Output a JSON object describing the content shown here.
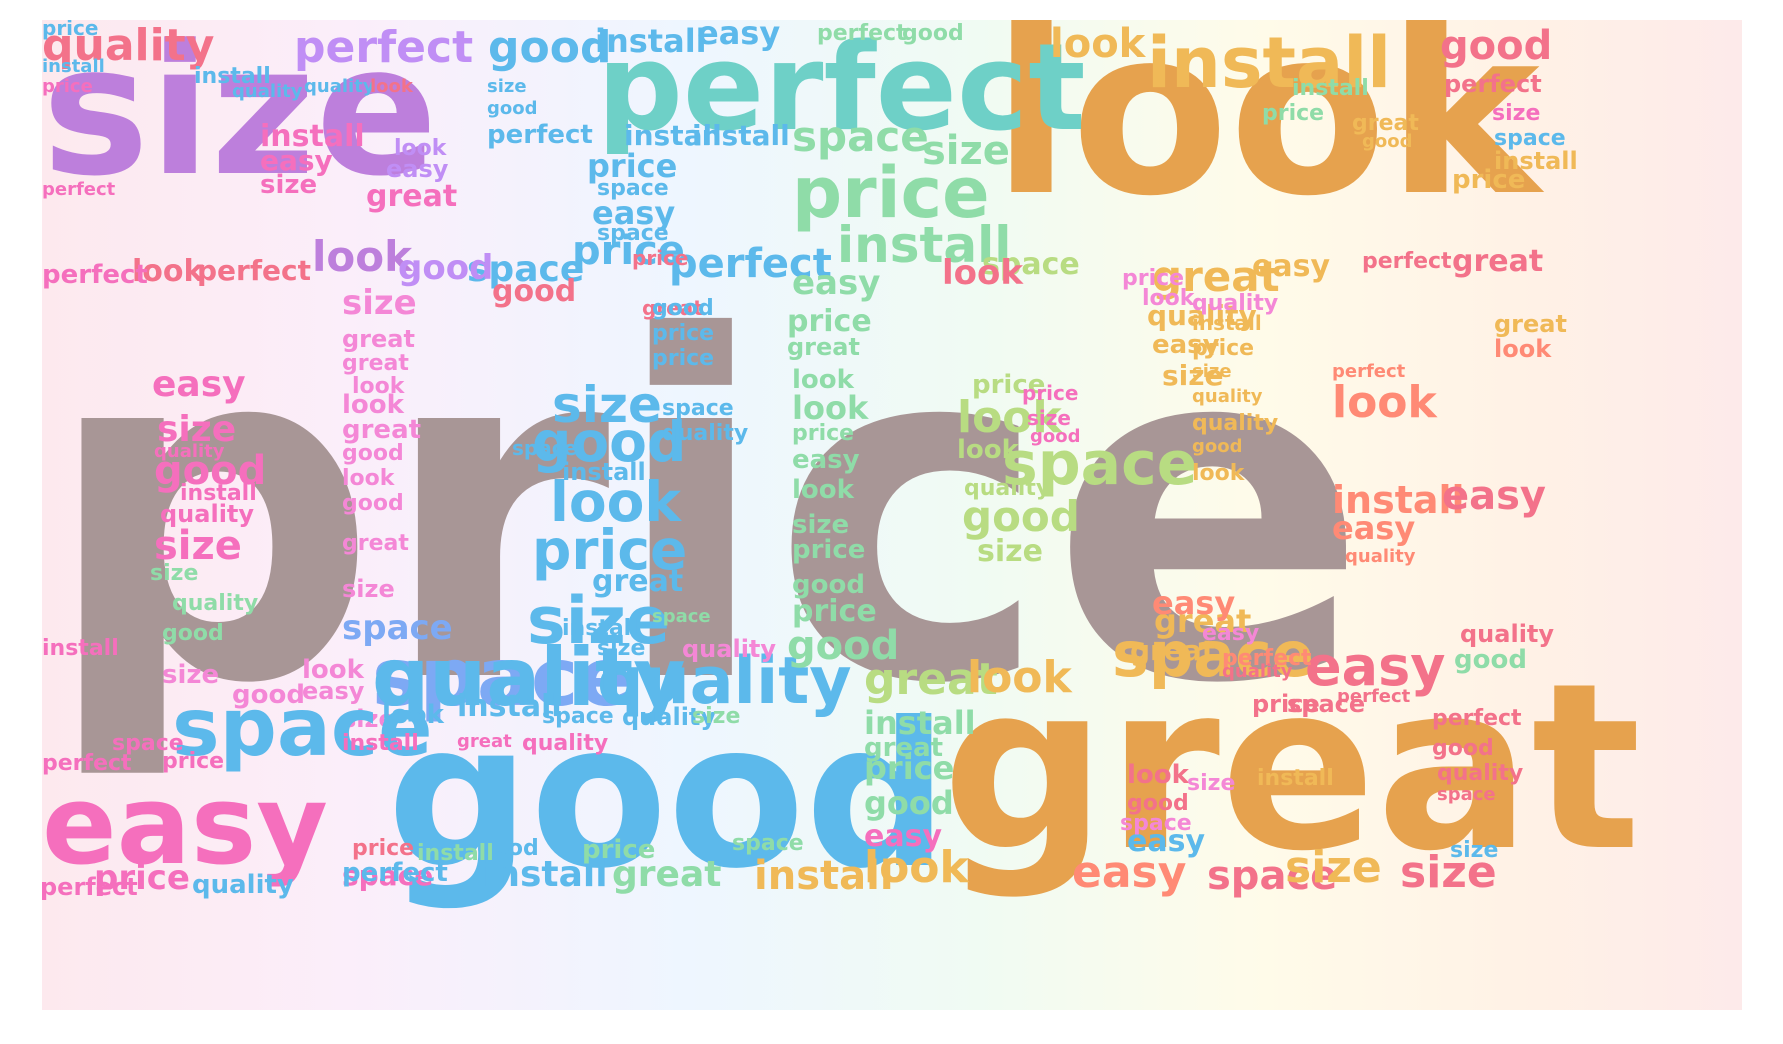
{
  "title": "",
  "palette": {
    "pink": "#f56fbd",
    "lightpink": "#f487d6",
    "salmon": "#f3728a",
    "coral": "#ff8a75",
    "purple": "#bd7fdc",
    "lavender": "#c08ef5",
    "skyblue": "#5cb9eb",
    "blue": "#7da9f4",
    "teal": "#6ed0c7",
    "mint": "#8fdca8",
    "lime": "#b8dc82",
    "gold": "#e6a24e",
    "amber": "#f0b957",
    "taupe": "#a89696"
  },
  "words": [
    {
      "text": "price",
      "color": "taupe"
    },
    {
      "text": "size",
      "color": "purple"
    },
    {
      "text": "look",
      "color": "gold"
    },
    {
      "text": "good",
      "color": "skyblue"
    },
    {
      "text": "great",
      "color": "gold"
    },
    {
      "text": "perfect",
      "color": "teal"
    },
    {
      "text": "easy",
      "color": "pink"
    },
    {
      "text": "install",
      "color": "amber"
    },
    {
      "text": "space",
      "color": "blue"
    },
    {
      "text": "quality",
      "color": "skyblue"
    },
    {
      "text": "price",
      "color": "mint"
    },
    {
      "text": "quality",
      "color": "salmon"
    },
    {
      "text": "perfect",
      "color": "lavender"
    },
    {
      "text": "good",
      "color": "skyblue"
    },
    {
      "text": "install",
      "color": "skyblue"
    },
    {
      "text": "easy",
      "color": "skyblue"
    },
    {
      "text": "perfect",
      "color": "mint"
    },
    {
      "text": "good",
      "color": "mint"
    },
    {
      "text": "look",
      "color": "amber"
    },
    {
      "text": "good",
      "color": "salmon"
    },
    {
      "text": "perfect",
      "color": "salmon"
    },
    {
      "text": "space",
      "color": "mint"
    },
    {
      "text": "size",
      "color": "mint"
    },
    {
      "text": "install",
      "color": "skyblue"
    },
    {
      "text": "install",
      "color": "skyblue"
    },
    {
      "text": "install",
      "color": "pink"
    },
    {
      "text": "easy",
      "color": "pink"
    },
    {
      "text": "size",
      "color": "pink"
    },
    {
      "text": "great",
      "color": "pink"
    },
    {
      "text": "look",
      "color": "lavender"
    },
    {
      "text": "easy",
      "color": "lavender"
    },
    {
      "text": "price",
      "color": "skyblue"
    },
    {
      "text": "space",
      "color": "skyblue"
    },
    {
      "text": "easy",
      "color": "skyblue"
    },
    {
      "text": "space",
      "color": "skyblue"
    },
    {
      "text": "price",
      "color": "skyblue"
    },
    {
      "text": "perfect",
      "color": "skyblue"
    },
    {
      "text": "look",
      "color": "purple"
    },
    {
      "text": "space",
      "color": "skyblue"
    },
    {
      "text": "good",
      "color": "lavender"
    },
    {
      "text": "perfect",
      "color": "salmon"
    },
    {
      "text": "look",
      "color": "salmon"
    },
    {
      "text": "perfect",
      "color": "pink"
    },
    {
      "text": "install",
      "color": "mint"
    },
    {
      "text": "space",
      "color": "lime"
    },
    {
      "text": "great",
      "color": "amber"
    },
    {
      "text": "easy",
      "color": "amber"
    },
    {
      "text": "perfect",
      "color": "salmon"
    },
    {
      "text": "great",
      "color": "salmon"
    },
    {
      "text": "easy",
      "color": "mint"
    },
    {
      "text": "price",
      "color": "mint"
    },
    {
      "text": "great",
      "color": "mint"
    },
    {
      "text": "quality",
      "color": "amber"
    },
    {
      "text": "easy",
      "color": "amber"
    },
    {
      "text": "size",
      "color": "amber"
    },
    {
      "text": "look",
      "color": "mint"
    },
    {
      "text": "look",
      "color": "mint"
    },
    {
      "text": "price",
      "color": "mint"
    },
    {
      "text": "easy",
      "color": "mint"
    },
    {
      "text": "look",
      "color": "mint"
    },
    {
      "text": "size",
      "color": "mint"
    },
    {
      "text": "price",
      "color": "mint"
    },
    {
      "text": "good",
      "color": "mint"
    },
    {
      "text": "price",
      "color": "mint"
    },
    {
      "text": "good",
      "color": "mint"
    },
    {
      "text": "size",
      "color": "skyblue"
    },
    {
      "text": "good",
      "color": "skyblue"
    },
    {
      "text": "install",
      "color": "skyblue"
    },
    {
      "text": "look",
      "color": "skyblue"
    },
    {
      "text": "price",
      "color": "skyblue"
    },
    {
      "text": "great",
      "color": "skyblue"
    },
    {
      "text": "size",
      "color": "skyblue"
    },
    {
      "text": "price",
      "color": "lime"
    },
    {
      "text": "look",
      "color": "lime"
    },
    {
      "text": "space",
      "color": "lime"
    },
    {
      "text": "look",
      "color": "lime"
    },
    {
      "text": "quality",
      "color": "lime"
    },
    {
      "text": "good",
      "color": "lime"
    },
    {
      "text": "size",
      "color": "lime"
    },
    {
      "text": "look",
      "color": "coral"
    },
    {
      "text": "perfect",
      "color": "coral"
    },
    {
      "text": "install",
      "color": "coral"
    },
    {
      "text": "easy",
      "color": "coral"
    },
    {
      "text": "easy",
      "color": "salmon"
    },
    {
      "text": "quality",
      "color": "coral"
    },
    {
      "text": "easy",
      "color": "pink"
    },
    {
      "text": "size",
      "color": "pink"
    },
    {
      "text": "quality",
      "color": "pink"
    },
    {
      "text": "good",
      "color": "pink"
    },
    {
      "text": "install",
      "color": "pink"
    },
    {
      "text": "quality",
      "color": "pink"
    },
    {
      "text": "size",
      "color": "pink"
    },
    {
      "text": "size",
      "color": "lightpink"
    },
    {
      "text": "great",
      "color": "lightpink"
    },
    {
      "text": "great",
      "color": "lightpink"
    },
    {
      "text": "look",
      "color": "lightpink"
    },
    {
      "text": "look",
      "color": "lightpink"
    },
    {
      "text": "great",
      "color": "lightpink"
    },
    {
      "text": "good",
      "color": "lightpink"
    },
    {
      "text": "look",
      "color": "lightpink"
    },
    {
      "text": "good",
      "color": "lightpink"
    },
    {
      "text": "great",
      "color": "lightpink"
    },
    {
      "text": "size",
      "color": "lightpink"
    },
    {
      "text": "space",
      "color": "blue"
    },
    {
      "text": "quality",
      "color": "skyblue"
    },
    {
      "text": "size",
      "color": "skyblue"
    },
    {
      "text": "quality",
      "color": "lightpink"
    },
    {
      "text": "size",
      "color": "lightpink"
    },
    {
      "text": "look",
      "color": "lightpink"
    },
    {
      "text": "good",
      "color": "lightpink"
    },
    {
      "text": "easy",
      "color": "lightpink"
    },
    {
      "text": "size",
      "color": "lightpink"
    },
    {
      "text": "space",
      "color": "skyblue"
    },
    {
      "text": "install",
      "color": "skyblue"
    },
    {
      "text": "space",
      "color": "skyblue"
    },
    {
      "text": "quality",
      "color": "skyblue"
    },
    {
      "text": "size",
      "color": "mint"
    },
    {
      "text": "great",
      "color": "lime"
    },
    {
      "text": "look",
      "color": "amber"
    },
    {
      "text": "space",
      "color": "amber"
    },
    {
      "text": "great",
      "color": "amber"
    },
    {
      "text": "great",
      "color": "amber"
    },
    {
      "text": "easy",
      "color": "coral"
    },
    {
      "text": "easy",
      "color": "salmon"
    },
    {
      "text": "quality",
      "color": "salmon"
    },
    {
      "text": "good",
      "color": "mint"
    },
    {
      "text": "install",
      "color": "mint"
    },
    {
      "text": "great",
      "color": "mint"
    },
    {
      "text": "price",
      "color": "mint"
    },
    {
      "text": "good",
      "color": "mint"
    },
    {
      "text": "easy",
      "color": "pink"
    },
    {
      "text": "space",
      "color": "pink"
    },
    {
      "text": "price",
      "color": "pink"
    },
    {
      "text": "install",
      "color": "pink"
    },
    {
      "text": "price",
      "color": "salmon"
    },
    {
      "text": "space",
      "color": "pink"
    },
    {
      "text": "perfect",
      "color": "pink"
    },
    {
      "text": "price",
      "color": "pink"
    },
    {
      "text": "quality",
      "color": "skyblue"
    },
    {
      "text": "perfect",
      "color": "skyblue"
    },
    {
      "text": "install",
      "color": "skyblue"
    },
    {
      "text": "great",
      "color": "mint"
    },
    {
      "text": "price",
      "color": "mint"
    },
    {
      "text": "install",
      "color": "amber"
    },
    {
      "text": "look",
      "color": "amber"
    },
    {
      "text": "easy",
      "color": "coral"
    },
    {
      "text": "space",
      "color": "salmon"
    },
    {
      "text": "size",
      "color": "amber"
    },
    {
      "text": "size",
      "color": "salmon"
    },
    {
      "text": "easy",
      "color": "skyblue"
    },
    {
      "text": "size",
      "color": "skyblue"
    },
    {
      "text": "good",
      "color": "skyblue"
    },
    {
      "text": "install",
      "color": "mint"
    },
    {
      "text": "space",
      "color": "mint"
    },
    {
      "text": "look",
      "color": "salmon"
    },
    {
      "text": "good",
      "color": "salmon"
    },
    {
      "text": "good",
      "color": "salmon"
    },
    {
      "text": "quality",
      "color": "salmon"
    },
    {
      "text": "space",
      "color": "salmon"
    },
    {
      "text": "install",
      "color": "amber"
    },
    {
      "text": "size",
      "color": "lightpink"
    },
    {
      "text": "space",
      "color": "lightpink"
    },
    {
      "text": "easy",
      "color": "lightpink"
    },
    {
      "text": "perfect",
      "color": "coral"
    },
    {
      "text": "quality",
      "color": "salmon"
    },
    {
      "text": "space",
      "color": "salmon"
    },
    {
      "text": "perfect",
      "color": "salmon"
    },
    {
      "text": "perfect",
      "color": "salmon"
    },
    {
      "text": "price",
      "color": "salmon"
    },
    {
      "text": "perfect",
      "color": "pink"
    },
    {
      "text": "install",
      "color": "pink"
    },
    {
      "text": "perfect",
      "color": "pink"
    },
    {
      "text": "price",
      "color": "pink"
    },
    {
      "text": "install",
      "color": "skyblue"
    },
    {
      "text": "install",
      "color": "skyblue"
    },
    {
      "text": "quality",
      "color": "skyblue"
    },
    {
      "text": "quality",
      "color": "skyblue"
    },
    {
      "text": "look",
      "color": "salmon"
    },
    {
      "text": "price",
      "color": "salmon"
    },
    {
      "text": "great",
      "color": "salmon"
    },
    {
      "text": "great",
      "color": "pink"
    },
    {
      "text": "quality",
      "color": "pink"
    },
    {
      "text": "size",
      "color": "pink"
    },
    {
      "text": "space",
      "color": "skyblue"
    },
    {
      "text": "install",
      "color": "amber"
    },
    {
      "text": "great",
      "color": "amber"
    },
    {
      "text": "good",
      "color": "amber"
    },
    {
      "text": "install",
      "color": "mint"
    },
    {
      "text": "price",
      "color": "mint"
    },
    {
      "text": "good",
      "color": "mint"
    },
    {
      "text": "size",
      "color": "mint"
    },
    {
      "text": "quality",
      "color": "mint"
    },
    {
      "text": "price",
      "color": "pink"
    },
    {
      "text": "size",
      "color": "pink"
    },
    {
      "text": "good",
      "color": "pink"
    },
    {
      "text": "price",
      "color": "lightpink"
    },
    {
      "text": "look",
      "color": "lightpink"
    },
    {
      "text": "quality",
      "color": "lightpink"
    },
    {
      "text": "install",
      "color": "amber"
    },
    {
      "text": "price",
      "color": "amber"
    },
    {
      "text": "size",
      "color": "amber"
    },
    {
      "text": "quality",
      "color": "amber"
    },
    {
      "text": "quality",
      "color": "amber"
    },
    {
      "text": "good",
      "color": "amber"
    },
    {
      "text": "look",
      "color": "amber"
    },
    {
      "text": "price",
      "color": "amber"
    },
    {
      "text": "great",
      "color": "amber"
    },
    {
      "text": "look",
      "color": "coral"
    },
    {
      "text": "look",
      "color": "salmon"
    },
    {
      "text": "good",
      "color": "salmon"
    },
    {
      "text": "space",
      "color": "mint"
    },
    {
      "text": "space",
      "color": "skyblue"
    },
    {
      "text": "quality",
      "color": "skyblue"
    },
    {
      "text": "good",
      "color": "skyblue"
    },
    {
      "text": "price",
      "color": "skyblue"
    },
    {
      "text": "price",
      "color": "skyblue"
    },
    {
      "text": "size",
      "color": "skyblue"
    },
    {
      "text": "good",
      "color": "skyblue"
    },
    {
      "text": "perfect",
      "color": "skyblue"
    },
    {
      "text": "look",
      "color": "skyblue"
    },
    {
      "text": "space",
      "color": "skyblue"
    },
    {
      "text": "install",
      "color": "skyblue"
    },
    {
      "text": "price",
      "color": "skyblue"
    }
  ]
}
